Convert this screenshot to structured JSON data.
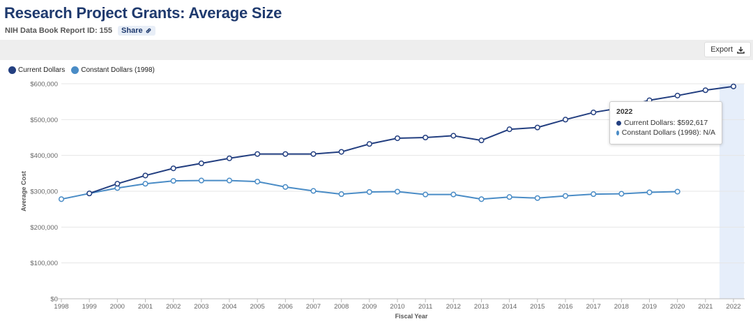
{
  "header": {
    "title": "Research Project Grants: Average Size",
    "report_id": "NIH Data Book Report ID: 155",
    "share_label": "Share"
  },
  "toolbar": {
    "export_label": "Export"
  },
  "icons": {
    "share": "link-icon",
    "export": "download-icon"
  },
  "colors": {
    "current": "#233f80",
    "constant": "#4a8cc6",
    "highlight": "#e6eefa",
    "title": "#1f3a6e"
  },
  "tooltip": {
    "year": "2022",
    "current_text": "Current Dollars: $592,617",
    "constant_text": "Constant Dollars (1998): N/A"
  },
  "chart_data": {
    "type": "line",
    "title": "",
    "xlabel": "Fiscal Year",
    "ylabel": "Average Cost",
    "x": [
      1998,
      1999,
      2000,
      2001,
      2002,
      2003,
      2004,
      2005,
      2006,
      2007,
      2008,
      2009,
      2010,
      2011,
      2012,
      2013,
      2014,
      2015,
      2016,
      2017,
      2018,
      2019,
      2020,
      2021,
      2022
    ],
    "ylim": [
      0,
      600000
    ],
    "yticks": [
      0,
      100000,
      200000,
      300000,
      400000,
      500000,
      600000
    ],
    "ytick_labels": [
      "$0",
      "$100,000",
      "$200,000",
      "$300,000",
      "$400,000",
      "$500,000",
      "$600,000"
    ],
    "grid": true,
    "legend": "top-left",
    "highlight_x": 2022,
    "series": [
      {
        "name": "Current Dollars",
        "values": [
          null,
          294000,
          321000,
          344000,
          364000,
          378000,
          392000,
          404000,
          404000,
          404000,
          410000,
          432000,
          448000,
          450000,
          455000,
          442000,
          473000,
          478000,
          500000,
          520000,
          533000,
          554000,
          567000,
          582000,
          592617
        ]
      },
      {
        "name": "Constant Dollars (1998)",
        "values": [
          278000,
          294000,
          309000,
          321000,
          329000,
          330000,
          330000,
          327000,
          312000,
          301000,
          292000,
          298000,
          299000,
          291000,
          291000,
          278000,
          284000,
          281000,
          287000,
          292000,
          293000,
          297000,
          299000,
          null,
          null
        ]
      }
    ]
  }
}
